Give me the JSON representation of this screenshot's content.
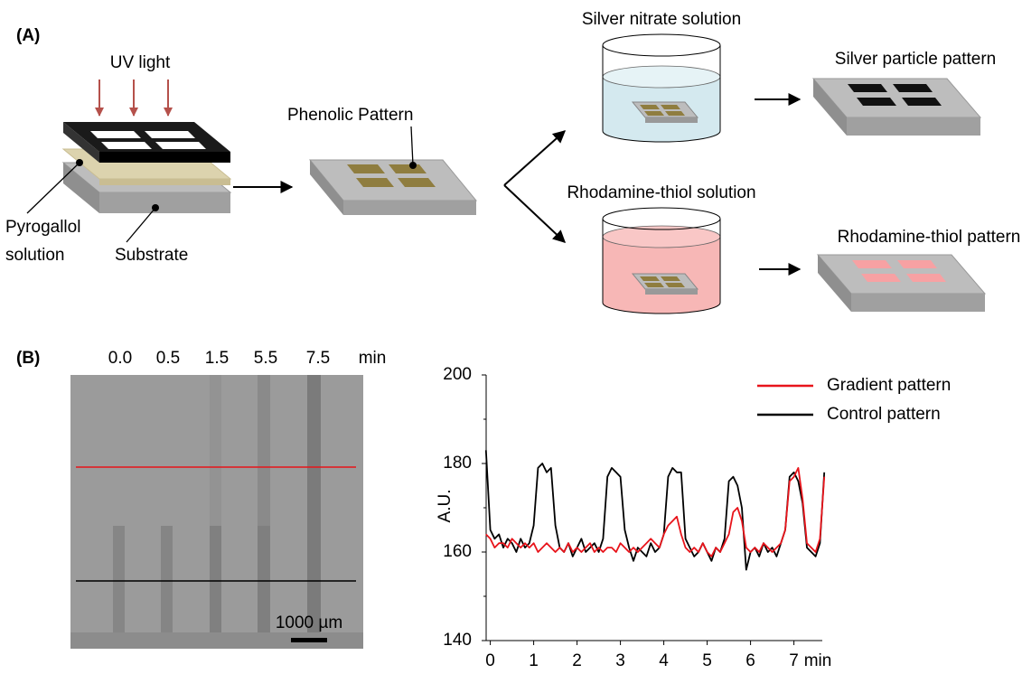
{
  "panel_a": {
    "label": "(A)",
    "uv_light": "UV light",
    "pyrogallol": [
      "Pyrogallol",
      "solution"
    ],
    "substrate": "Substrate",
    "phenolic": "Phenolic Pattern",
    "silver_solution": "Silver nitrate solution",
    "silver_pattern": "Silver particle pattern",
    "rhodamine_solution": "Rhodamine-thiol solution",
    "rhodamine_pattern": "Rhodamine-thiol pattern"
  },
  "panel_b": {
    "label": "(B)",
    "image_labels": [
      "0.0",
      "0.5",
      "1.5",
      "5.5",
      "7.5",
      "min"
    ],
    "scale_bar": "1000 µm"
  },
  "chart_data": {
    "type": "line",
    "y_label": "A.U.",
    "x_label": "min",
    "x": [
      -0.1,
      0,
      0.1,
      0.2,
      0.3,
      0.4,
      0.5,
      0.6,
      0.7,
      0.8,
      0.9,
      1,
      1.1,
      1.2,
      1.3,
      1.4,
      1.5,
      1.6,
      1.7,
      1.8,
      1.9,
      2,
      2.1,
      2.2,
      2.3,
      2.4,
      2.5,
      2.6,
      2.7,
      2.8,
      2.9,
      3,
      3.1,
      3.2,
      3.3,
      3.4,
      3.5,
      3.6,
      3.7,
      3.8,
      3.9,
      4,
      4.1,
      4.2,
      4.3,
      4.4,
      4.5,
      4.6,
      4.7,
      4.8,
      4.9,
      5,
      5.1,
      5.2,
      5.3,
      5.4,
      5.5,
      5.6,
      5.7,
      5.8,
      5.9,
      6,
      6.1,
      6.2,
      6.3,
      6.4,
      6.5,
      6.6,
      6.7,
      6.8,
      6.9,
      7,
      7.1,
      7.2,
      7.3,
      7.4,
      7.5,
      7.6,
      7.7
    ],
    "series": [
      {
        "name": "Gradient pattern",
        "color": "#e8141b",
        "values": [
          164,
          163,
          161,
          162,
          162,
          161,
          163,
          162,
          161,
          162,
          161,
          162,
          160,
          161,
          162,
          161,
          160,
          161,
          160,
          162,
          160,
          161,
          160,
          161,
          162,
          160,
          161,
          160,
          161,
          161,
          160,
          162,
          161,
          160,
          161,
          160,
          161,
          162,
          163,
          162,
          161,
          164,
          166,
          167,
          168,
          164,
          161,
          160,
          161,
          160,
          162,
          160,
          159,
          161,
          160,
          162,
          164,
          169,
          170,
          167,
          161,
          160,
          161,
          160,
          162,
          161,
          160,
          161,
          162,
          165,
          176,
          177,
          179,
          172,
          162,
          161,
          160,
          163,
          177
        ]
      },
      {
        "name": "Control pattern",
        "color": "#000000",
        "values": [
          183,
          165,
          163,
          164,
          161,
          163,
          162,
          160,
          163,
          161,
          162,
          166,
          179,
          180,
          178,
          179,
          166,
          161,
          160,
          162,
          159,
          161,
          163,
          160,
          161,
          162,
          160,
          163,
          177,
          179,
          178,
          177,
          165,
          161,
          158,
          161,
          160,
          159,
          162,
          160,
          161,
          164,
          177,
          179,
          178,
          178,
          163,
          161,
          159,
          160,
          162,
          160,
          158,
          161,
          160,
          163,
          176,
          177,
          175,
          170,
          156,
          160,
          161,
          159,
          162,
          160,
          161,
          159,
          162,
          165,
          177,
          178,
          176,
          171,
          161,
          160,
          159,
          162,
          178
        ]
      }
    ],
    "xlim": [
      -0.2,
      7.8
    ],
    "xticks": [
      0,
      1,
      2,
      3,
      4,
      5,
      6,
      7
    ],
    "ylim": [
      140,
      200
    ],
    "yticks": [
      140,
      160,
      180,
      200
    ],
    "yminorticks": [
      150,
      170,
      190
    ],
    "grid": false
  }
}
